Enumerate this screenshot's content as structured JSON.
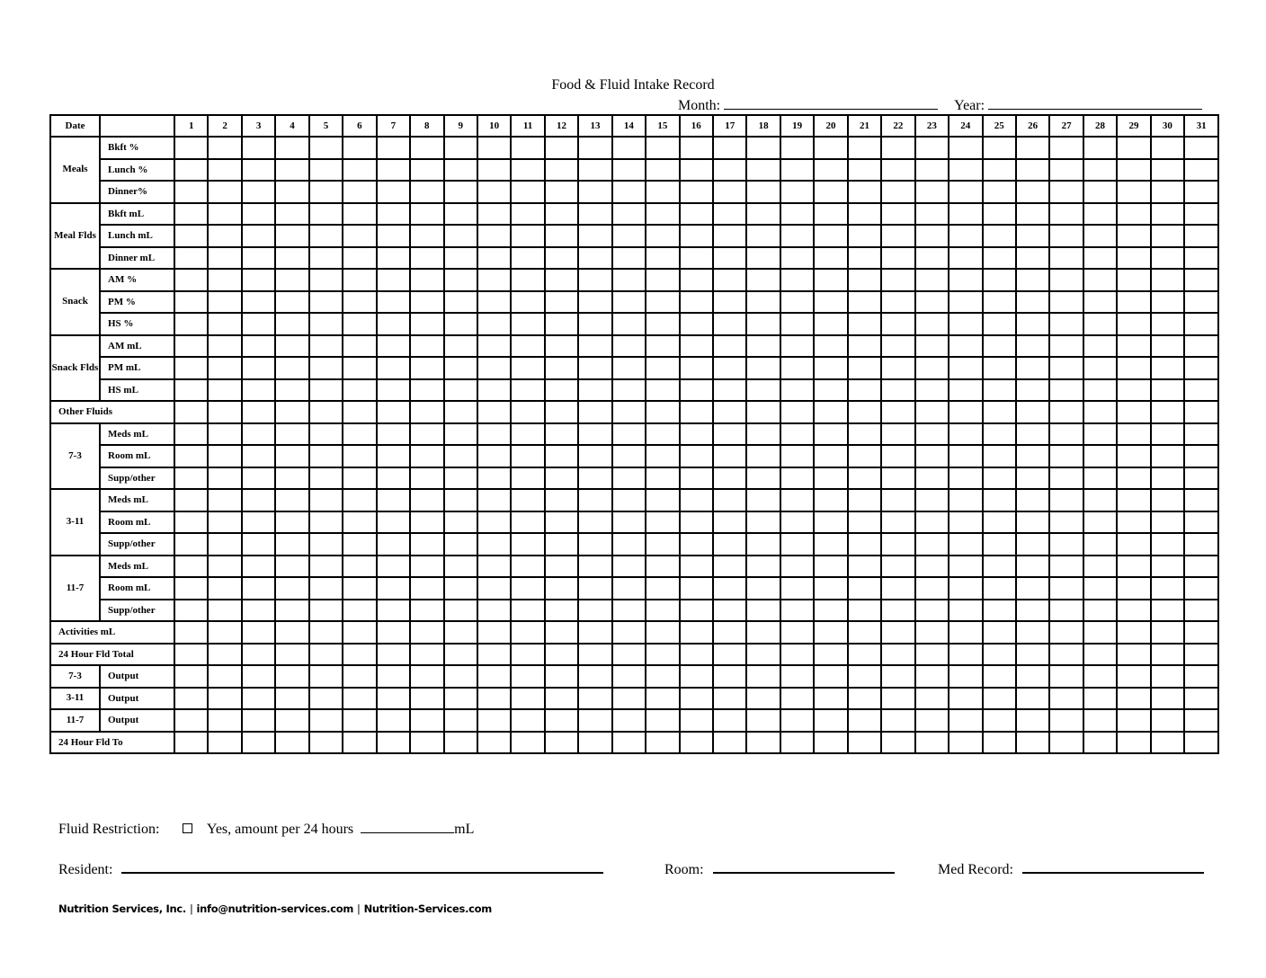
{
  "title": "Food & Fluid Intake Record",
  "month_label": "Month:",
  "year_label": "Year:",
  "table": {
    "date_header": "Date",
    "days": [
      "1",
      "2",
      "3",
      "4",
      "5",
      "6",
      "7",
      "8",
      "9",
      "10",
      "11",
      "12",
      "13",
      "14",
      "15",
      "16",
      "17",
      "18",
      "19",
      "20",
      "21",
      "22",
      "23",
      "24",
      "25",
      "26",
      "27",
      "28",
      "29",
      "30",
      "31"
    ],
    "rows": [
      {
        "group": "Meals",
        "subs": [
          "Bkft %",
          "Lunch %",
          "Dinner%"
        ]
      },
      {
        "group": "Meal Flds",
        "subs": [
          "Bkft mL",
          "Lunch mL",
          "Dinner mL"
        ]
      },
      {
        "group": "Snack",
        "subs": [
          "AM %",
          "PM %",
          "HS %"
        ]
      },
      {
        "group": "Snack Flds",
        "subs": [
          "AM mL",
          "PM mL",
          "HS mL"
        ]
      },
      {
        "full": "Other Fluids"
      },
      {
        "group": "7-3",
        "subs": [
          "Meds mL",
          "Room mL",
          "Supp/other"
        ]
      },
      {
        "group": "3-11",
        "subs": [
          "Meds mL",
          "Room mL",
          "Supp/other"
        ]
      },
      {
        "group": "11-7",
        "subs": [
          "Meds mL",
          "Room mL",
          "Supp/other"
        ]
      },
      {
        "full": "Activities mL"
      },
      {
        "full": "24 Hour Fld Total"
      },
      {
        "group": "7-3",
        "subs": [
          "Output"
        ]
      },
      {
        "group": "3-11",
        "subs": [
          "Output"
        ]
      },
      {
        "group": "11-7",
        "subs": [
          "Output"
        ]
      },
      {
        "full": "24 Hour Fld To"
      }
    ]
  },
  "fluid_restriction": {
    "label": "Fluid Restriction:",
    "option": "Yes, amount per 24 hours",
    "unit": "mL",
    "checked": false
  },
  "resident_label": "Resident:",
  "room_label": "Room:",
  "med_record_label": "Med Record:",
  "footer": {
    "company": "Nutrition Services, Inc.",
    "email": "info@nutrition-services.com",
    "website": "Nutrition-Services.com",
    "separator": "|"
  }
}
